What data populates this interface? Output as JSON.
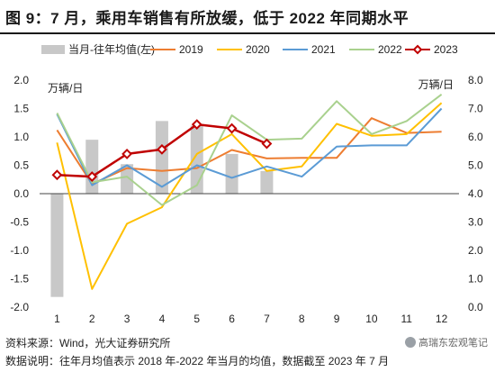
{
  "page": {
    "title": "图 9：7 月，乘用车销售有所放缓，低于 2022 年同期水平",
    "source_label": "资料来源：Wind，光大证券研究所",
    "note": "数据说明：往年月均值表示 2018 年-2022 年当月的均值，数据截至 2023 年 7 月",
    "watermark": "高瑞东宏观笔记"
  },
  "chart_data": {
    "type": "bar+line",
    "categories": [
      "1",
      "2",
      "3",
      "4",
      "5",
      "6",
      "7",
      "8",
      "9",
      "10",
      "11",
      "12"
    ],
    "left_axis": {
      "label": "万辆/日",
      "ticks": [
        "2.0",
        "1.5",
        "1.0",
        "0.5",
        "0.0",
        "-0.5",
        "-1.0",
        "-1.5",
        "-2.0"
      ],
      "range": [
        -2.0,
        2.0
      ]
    },
    "right_axis": {
      "label": "万辆/日",
      "ticks": [
        "8.0",
        "7.0",
        "6.0",
        "5.0",
        "4.0",
        "3.0",
        "2.0",
        "1.0",
        "0.0"
      ],
      "range": [
        0.0,
        8.0
      ]
    },
    "grid": false,
    "legend_position": "top",
    "bar_series": {
      "name": "当月-往年均值(左)",
      "color": "#c8c8c8",
      "values": [
        -1.82,
        0.95,
        0.52,
        1.28,
        1.2,
        0.7,
        0.4,
        null,
        null,
        null,
        null,
        null
      ]
    },
    "line_series": [
      {
        "name": "2019",
        "color": "#ed7d31",
        "values": [
          1.12,
          0.17,
          0.45,
          0.4,
          0.45,
          0.77,
          0.62,
          0.63,
          0.63,
          1.33,
          1.07,
          1.09
        ]
      },
      {
        "name": "2020",
        "color": "#ffc000",
        "values": [
          0.9,
          -1.68,
          -0.53,
          -0.24,
          0.7,
          1.05,
          0.4,
          0.48,
          1.23,
          1.02,
          1.05,
          1.6
        ]
      },
      {
        "name": "2021",
        "color": "#5b9bd5",
        "values": [
          1.4,
          0.15,
          0.5,
          0.12,
          0.5,
          0.28,
          0.48,
          0.3,
          0.83,
          0.85,
          0.85,
          1.5
        ]
      },
      {
        "name": "2022",
        "color": "#a9d18e",
        "values": [
          1.42,
          0.2,
          0.3,
          -0.2,
          0.15,
          1.38,
          0.95,
          0.97,
          1.63,
          1.05,
          1.28,
          1.75
        ]
      },
      {
        "name": "2023",
        "color": "#c00000",
        "marker": "diamond",
        "values": [
          0.33,
          0.3,
          0.7,
          0.78,
          1.22,
          1.15,
          0.88,
          null,
          null,
          null,
          null,
          null
        ]
      }
    ]
  }
}
